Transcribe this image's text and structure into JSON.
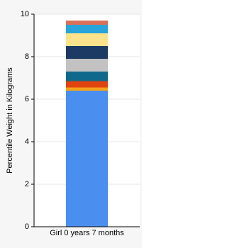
{
  "chart_data": {
    "type": "stacked-bar",
    "y_label": "Percentile Weight in Kilograms",
    "categories": [
      "Girl 0 years 7 months"
    ],
    "series": [
      {
        "color": "#4a8ef0",
        "values": [
          6.4
        ]
      },
      {
        "color": "#f4a21c",
        "values": [
          0.15
        ]
      },
      {
        "color": "#e0450f",
        "values": [
          0.3
        ]
      },
      {
        "color": "#10698d",
        "values": [
          0.45
        ]
      },
      {
        "color": "#c2c2c2",
        "values": [
          0.6
        ]
      },
      {
        "color": "#1c3a63",
        "values": [
          0.6
        ]
      },
      {
        "color": "#fbe38c",
        "values": [
          0.6
        ]
      },
      {
        "color": "#27a4da",
        "values": [
          0.4
        ]
      },
      {
        "color": "#d8705a",
        "values": [
          0.2
        ]
      }
    ],
    "ylim": [
      0,
      10
    ],
    "yticks": [
      0,
      2,
      4,
      6,
      8,
      10
    ],
    "grid": true
  }
}
